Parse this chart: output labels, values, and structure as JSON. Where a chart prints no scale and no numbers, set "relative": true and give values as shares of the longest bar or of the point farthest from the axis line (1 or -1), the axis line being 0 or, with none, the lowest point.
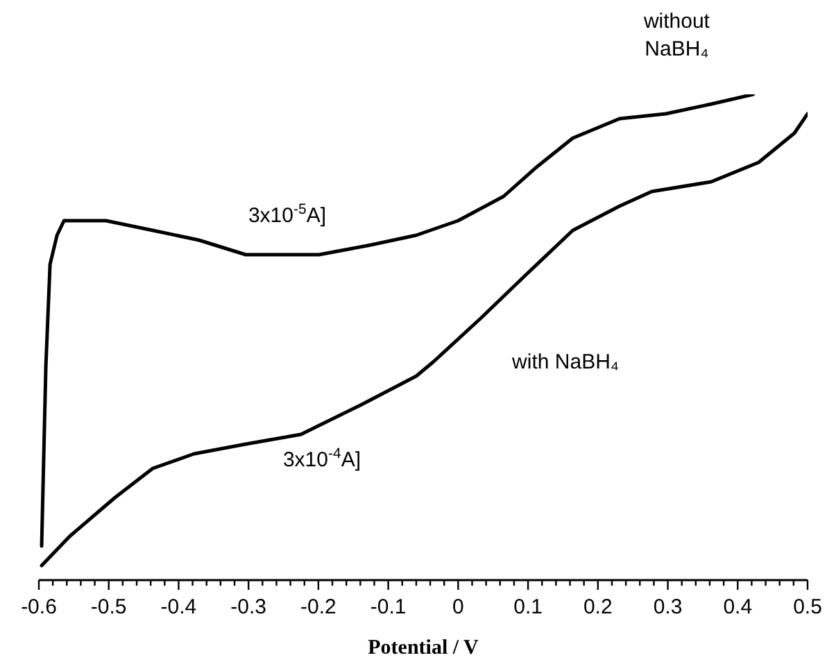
{
  "chart_data": {
    "type": "line",
    "relative": true,
    "xlabel": "Potential / V",
    "xlim": [
      -0.6,
      0.5
    ],
    "xticks": [
      -0.6,
      {
        "value": -0.58,
        "label": null
      },
      {
        "value": -0.56,
        "label": null
      },
      {
        "value": -0.54,
        "label": null
      },
      {
        "value": -0.52,
        "label": null
      },
      -0.5,
      {
        "value": -0.48,
        "label": null
      },
      {
        "value": -0.46,
        "label": null
      },
      {
        "value": -0.44,
        "label": null
      },
      {
        "value": -0.42,
        "label": null
      },
      -0.4,
      {
        "value": -0.38,
        "label": null
      },
      {
        "value": -0.36,
        "label": null
      },
      {
        "value": -0.34,
        "label": null
      },
      {
        "value": -0.32,
        "label": null
      },
      -0.3,
      {
        "value": -0.28,
        "label": null
      },
      {
        "value": -0.26,
        "label": null
      },
      {
        "value": -0.24,
        "label": null
      },
      {
        "value": -0.22,
        "label": null
      },
      -0.2,
      {
        "value": -0.18,
        "label": null
      },
      {
        "value": -0.16,
        "label": null
      },
      {
        "value": -0.14,
        "label": null
      },
      {
        "value": -0.12,
        "label": null
      },
      -0.1,
      {
        "value": -0.08,
        "label": null
      },
      {
        "value": -0.06,
        "label": null
      },
      {
        "value": -0.04,
        "label": null
      },
      {
        "value": -0.02,
        "label": null
      },
      0,
      {
        "value": 0.02,
        "label": null
      },
      {
        "value": 0.04,
        "label": null
      },
      {
        "value": 0.06,
        "label": null
      },
      {
        "value": 0.08,
        "label": null
      },
      0.1,
      {
        "value": 0.12,
        "label": null
      },
      {
        "value": 0.14,
        "label": null
      },
      {
        "value": 0.16,
        "label": null
      },
      {
        "value": 0.18,
        "label": null
      },
      0.2,
      {
        "value": 0.22,
        "label": null
      },
      {
        "value": 0.24,
        "label": null
      },
      {
        "value": 0.26,
        "label": null
      },
      {
        "value": 0.28,
        "label": null
      },
      0.3,
      {
        "value": 0.32,
        "label": null
      },
      {
        "value": 0.34,
        "label": null
      },
      {
        "value": 0.36,
        "label": null
      },
      {
        "value": 0.38,
        "label": null
      },
      0.4,
      {
        "value": 0.42,
        "label": null
      },
      {
        "value": 0.44,
        "label": null
      },
      {
        "value": 0.46,
        "label": null
      },
      {
        "value": 0.48,
        "label": null
      },
      0.5
    ],
    "series": [
      {
        "name": "without NaBH₄",
        "color": "#000000",
        "x": [
          -0.596,
          -0.59,
          -0.584,
          -0.574,
          -0.564,
          -0.554,
          -0.504,
          -0.437,
          -0.371,
          -0.304,
          -0.199,
          -0.125,
          -0.06,
          0.0,
          0.065,
          0.112,
          0.164,
          0.231,
          0.297,
          0.362,
          0.422
        ],
        "values": [
          0.07,
          0.44,
          0.65,
          0.71,
          0.74,
          0.74,
          0.74,
          0.72,
          0.7,
          0.67,
          0.67,
          0.69,
          0.71,
          0.74,
          0.79,
          0.85,
          0.91,
          0.95,
          0.96,
          0.98,
          1.0
        ]
      },
      {
        "name": "with NaBH₄",
        "color": "#000000",
        "x": [
          -0.596,
          -0.556,
          -0.491,
          -0.437,
          -0.378,
          -0.304,
          -0.225,
          -0.14,
          -0.06,
          -0.035,
          0.033,
          0.098,
          0.164,
          0.231,
          0.277,
          0.362,
          0.43,
          0.481,
          0.5
        ],
        "values": [
          0.03,
          0.09,
          0.17,
          0.23,
          0.26,
          0.28,
          0.3,
          0.36,
          0.42,
          0.45,
          0.54,
          0.63,
          0.72,
          0.77,
          0.8,
          0.82,
          0.86,
          0.92,
          0.96
        ]
      }
    ],
    "annotations": [
      "3x10$^{-5}$A]",
      "3x10$^{-4}$A]"
    ],
    "marker": "none",
    "line_style": "solid"
  }
}
